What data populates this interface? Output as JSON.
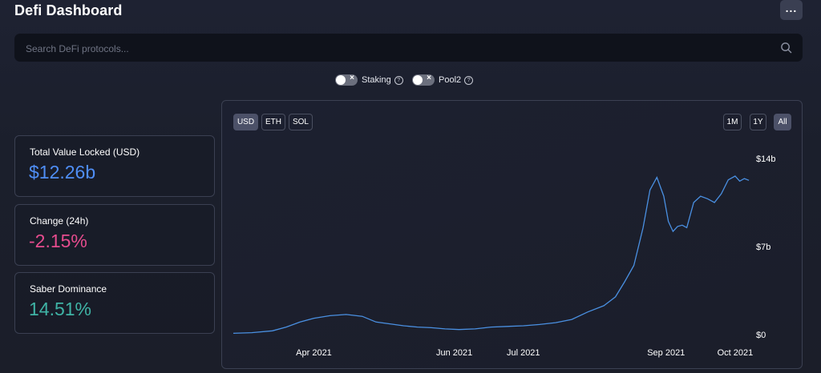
{
  "header": {
    "title": "Defi Dashboard",
    "menu_icon": "more-horizontal-icon"
  },
  "search": {
    "placeholder": "Search DeFi protocols...",
    "icon": "search-icon"
  },
  "toggles": [
    {
      "label": "Staking",
      "enabled": false
    },
    {
      "label": "Pool2",
      "enabled": false
    }
  ],
  "stats": [
    {
      "label": "Total Value Locked (USD)",
      "value": "$12.26b",
      "color": "#4f8ef5"
    },
    {
      "label": "Change (24h)",
      "value": "-2.15%",
      "color": "#e64c8e"
    },
    {
      "label": "Saber Dominance",
      "value": "14.51%",
      "color": "#3fb3a5"
    }
  ],
  "chart_controls": {
    "currencies": [
      "USD",
      "ETH",
      "SOL"
    ],
    "active_currency": "USD",
    "ranges": [
      "1M",
      "1Y",
      "All"
    ],
    "active_range": "All"
  },
  "chart_data": {
    "type": "line",
    "title": "",
    "xlabel": "",
    "ylabel": "",
    "y_axis_position": "right",
    "grid": false,
    "line_color": "#4a90e2",
    "x_ticks": [
      "Apr 2021",
      "Jun 2021",
      "Jul 2021",
      "Sep 2021",
      "Oct 2021"
    ],
    "y_ticks": [
      "$0",
      "$7b",
      "$14b"
    ],
    "ylim": [
      0,
      14
    ],
    "series": [
      {
        "x": [
          "2021-02-25",
          "2021-03-05",
          "2021-03-14",
          "2021-03-20",
          "2021-03-26",
          "2021-04-01",
          "2021-04-08",
          "2021-04-15",
          "2021-04-22",
          "2021-04-28",
          "2021-05-04",
          "2021-05-10",
          "2021-05-16",
          "2021-05-22",
          "2021-05-28",
          "2021-06-03",
          "2021-06-10",
          "2021-06-17",
          "2021-06-24",
          "2021-07-01",
          "2021-07-08",
          "2021-07-15",
          "2021-07-22",
          "2021-07-29",
          "2021-08-05",
          "2021-08-10",
          "2021-08-14",
          "2021-08-18",
          "2021-08-22",
          "2021-08-25",
          "2021-08-28",
          "2021-08-31",
          "2021-09-02",
          "2021-09-04",
          "2021-09-06",
          "2021-09-08",
          "2021-09-10",
          "2021-09-13",
          "2021-09-16",
          "2021-09-19",
          "2021-09-22",
          "2021-09-25",
          "2021-09-28",
          "2021-10-01",
          "2021-10-03",
          "2021-10-05",
          "2021-10-07"
        ],
        "y": [
          0.1,
          0.15,
          0.3,
          0.6,
          1.0,
          1.3,
          1.5,
          1.6,
          1.45,
          1.0,
          0.85,
          0.7,
          0.6,
          0.55,
          0.45,
          0.4,
          0.45,
          0.6,
          0.65,
          0.7,
          0.8,
          0.95,
          1.2,
          1.8,
          2.3,
          3.0,
          4.2,
          5.5,
          8.5,
          11.5,
          12.5,
          11.0,
          9.0,
          8.2,
          8.6,
          8.7,
          8.5,
          10.5,
          11.0,
          10.8,
          10.5,
          11.2,
          12.3,
          12.6,
          12.2,
          12.4,
          12.26
        ]
      }
    ]
  }
}
